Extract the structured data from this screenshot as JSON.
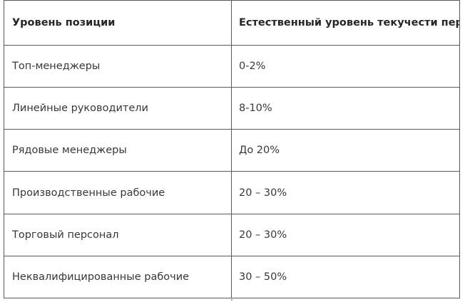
{
  "table": {
    "headers": {
      "level": "Уровень позиции",
      "rate": "Естественный уровень текучести персонала"
    },
    "rows": [
      {
        "level": "Топ-менеджеры",
        "rate": "0-2%"
      },
      {
        "level": "Линейные руководители",
        "rate": "8-10%"
      },
      {
        "level": "Рядовые менеджеры",
        "rate": "До 20%"
      },
      {
        "level": "Производственные рабочие",
        "rate": "20 – 30%"
      },
      {
        "level": "Торговый персонал",
        "rate": "20 – 30%"
      },
      {
        "level": "Неквалифицированные рабочие",
        "rate": "30 – 50%"
      }
    ]
  }
}
